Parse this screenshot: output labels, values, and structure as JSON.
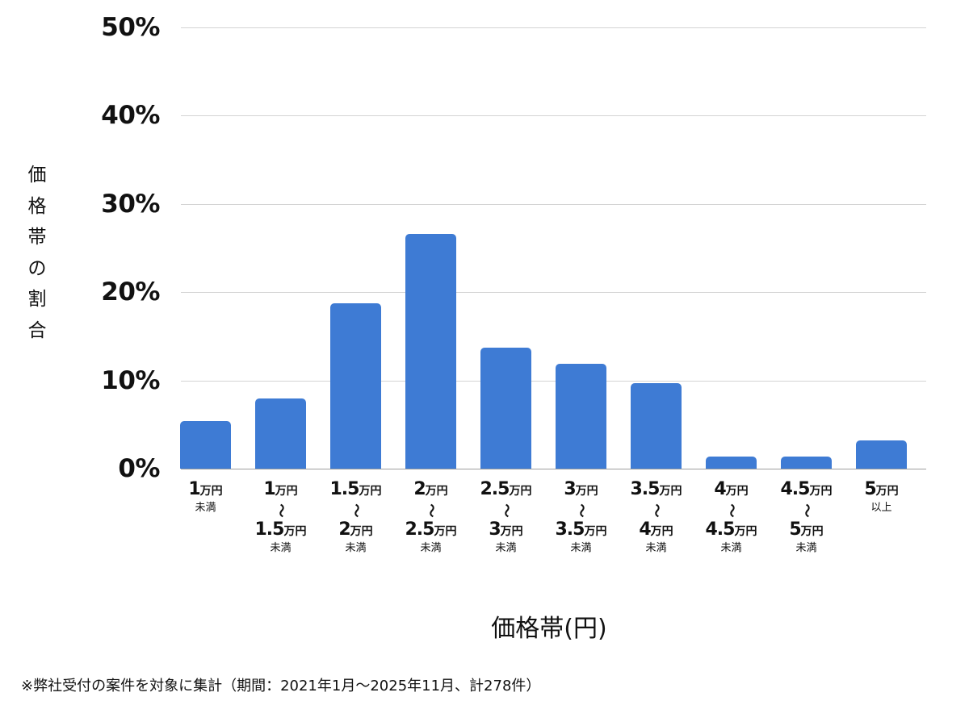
{
  "chart_data": {
    "type": "bar",
    "title": "",
    "xlabel": "価格帯(円)",
    "ylabel": "価格帯の割合",
    "ylim": [
      0,
      50
    ],
    "yticks": [
      "0%",
      "10%",
      "20%",
      "30%",
      "40%",
      "50%"
    ],
    "grid": true,
    "legend": null,
    "bar_color": "#3e7bd4",
    "categories": [
      "1万円未満",
      "1万円〜1.5万円未満",
      "1.5万円〜2万円未満",
      "2万円〜2.5万円未満",
      "2.5万円〜3万円未満",
      "3万円〜3.5万円未満",
      "3.5万円〜4万円未満",
      "4万円〜4.5万円未満",
      "4.5万円〜5万円未満",
      "5万円以上"
    ],
    "values": [
      5.4,
      7.9,
      18.7,
      26.6,
      13.7,
      11.9,
      9.7,
      1.4,
      1.4,
      3.2
    ],
    "footnote": "※弊社受付の案件を対象に集計（期間：2021年1月〜2025年11月、計278件）"
  },
  "axis": {
    "y_ticks": [
      {
        "label": "50%",
        "value": 50
      },
      {
        "label": "40%",
        "value": 40
      },
      {
        "label": "30%",
        "value": 30
      },
      {
        "label": "20%",
        "value": 20
      },
      {
        "label": "10%",
        "value": 10
      },
      {
        "label": "0%",
        "value": 0
      }
    ],
    "y_title_chars": [
      "価",
      "格",
      "帯",
      "の",
      "割",
      "合"
    ],
    "x_title": "価格帯(円)"
  },
  "x_labels": [
    {
      "from": "1",
      "unit": "万円",
      "tilde": "",
      "to": "",
      "to_unit": "",
      "suffix": "未満"
    },
    {
      "from": "1",
      "unit": "万円",
      "tilde": "〜",
      "to": "1.5",
      "to_unit": "万円",
      "suffix": "未満"
    },
    {
      "from": "1.5",
      "unit": "万円",
      "tilde": "〜",
      "to": "2",
      "to_unit": "万円",
      "suffix": "未満"
    },
    {
      "from": "2",
      "unit": "万円",
      "tilde": "〜",
      "to": "2.5",
      "to_unit": "万円",
      "suffix": "未満"
    },
    {
      "from": "2.5",
      "unit": "万円",
      "tilde": "〜",
      "to": "3",
      "to_unit": "万円",
      "suffix": "未満"
    },
    {
      "from": "3",
      "unit": "万円",
      "tilde": "〜",
      "to": "3.5",
      "to_unit": "万円",
      "suffix": "未満"
    },
    {
      "from": "3.5",
      "unit": "万円",
      "tilde": "〜",
      "to": "4",
      "to_unit": "万円",
      "suffix": "未満"
    },
    {
      "from": "4",
      "unit": "万円",
      "tilde": "〜",
      "to": "4.5",
      "to_unit": "万円",
      "suffix": "未満"
    },
    {
      "from": "4.5",
      "unit": "万円",
      "tilde": "〜",
      "to": "5",
      "to_unit": "万円",
      "suffix": "未満"
    },
    {
      "from": "5",
      "unit": "万円",
      "tilde": "",
      "to": "",
      "to_unit": "",
      "suffix": "以上"
    }
  ],
  "footnote": "※弊社受付の案件を対象に集計（期間：2021年1月〜2025年11月、計278件）"
}
